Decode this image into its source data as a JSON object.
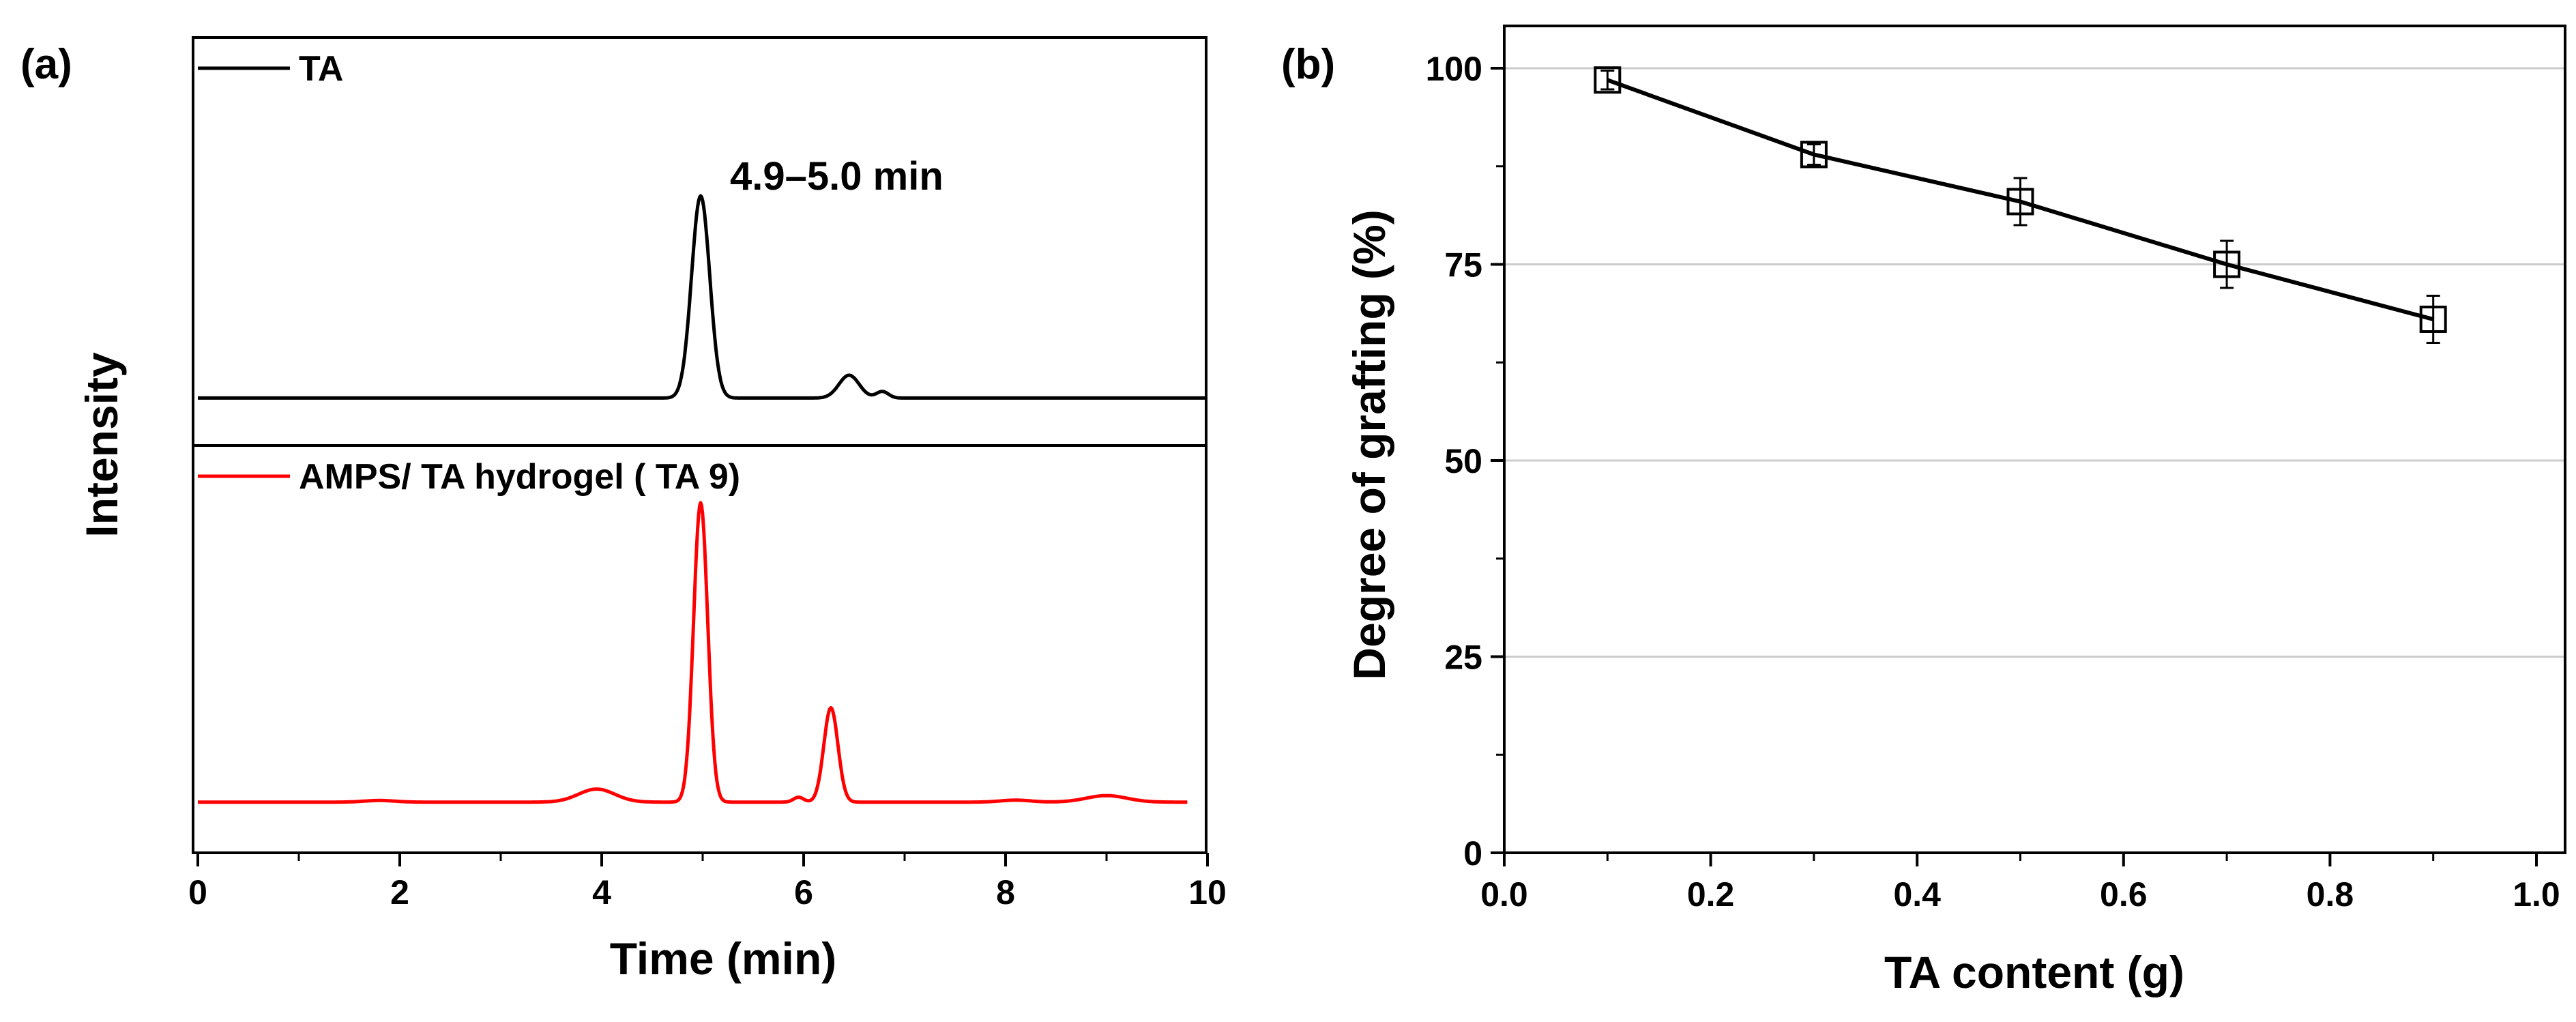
{
  "chart_data": [
    {
      "type": "line",
      "panel_label": "(a)",
      "title": "",
      "xlabel": "Time (min)",
      "ylabel": "Intensity",
      "xlim": [
        0,
        10
      ],
      "x_ticks": [
        "0",
        "2",
        "4",
        "6",
        "8",
        "10"
      ],
      "annotation": "4.9–5.0 min",
      "legend_position": "top-left of each subplot",
      "subplots": [
        {
          "name": "TA",
          "color": "#000000",
          "legend": "TA",
          "baseline": 0.02,
          "peaks": [
            {
              "x": 4.98,
              "height": 0.62,
              "width": 0.09
            },
            {
              "x": 6.45,
              "height": 0.07,
              "width": 0.1
            },
            {
              "x": 6.78,
              "height": 0.02,
              "width": 0.06
            }
          ],
          "x_range": [
            0,
            10
          ]
        },
        {
          "name": "AMPS/TA hydrogel (TA 9)",
          "color": "#ff0000",
          "legend": "AMPS/ TA hydrogel ( TA 9)",
          "baseline": 0.03,
          "peaks": [
            {
              "x": 1.8,
              "height": 0.005,
              "width": 0.15
            },
            {
              "x": 3.95,
              "height": 0.04,
              "width": 0.18
            },
            {
              "x": 4.98,
              "height": 0.92,
              "width": 0.07
            },
            {
              "x": 5.95,
              "height": 0.015,
              "width": 0.05
            },
            {
              "x": 6.27,
              "height": 0.29,
              "width": 0.07
            },
            {
              "x": 8.1,
              "height": 0.006,
              "width": 0.15
            },
            {
              "x": 9.0,
              "height": 0.02,
              "width": 0.2
            }
          ],
          "x_range": [
            0,
            9.8
          ]
        }
      ]
    },
    {
      "type": "scatter",
      "panel_label": "(b)",
      "title": "",
      "xlabel": "TA content (g)",
      "ylabel": "Degree of grafting (%)",
      "xlim": [
        0,
        1
      ],
      "ylim": [
        0,
        100
      ],
      "x_ticks": [
        "0.0",
        "0.2",
        "0.4",
        "0.6",
        "0.8",
        "1.0"
      ],
      "y_ticks": [
        "0",
        "25",
        "50",
        "75",
        "100"
      ],
      "grid": "horizontal",
      "marker": "open-square",
      "series": [
        {
          "name": "Degree of grafting",
          "x": [
            0.1,
            0.3,
            0.5,
            0.7,
            0.9
          ],
          "values": [
            98.5,
            89,
            83,
            75,
            68
          ],
          "errors": [
            1.2,
            1.3,
            3,
            3,
            3
          ]
        }
      ]
    }
  ]
}
